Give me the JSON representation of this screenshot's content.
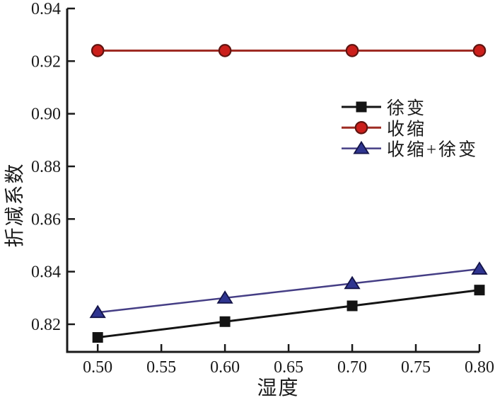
{
  "page": {
    "background_color": "#ffffff"
  },
  "chart_data": {
    "type": "line",
    "title": "",
    "xlabel": "湿度",
    "ylabel": "折减系数",
    "x": [
      0.5,
      0.6,
      0.7,
      0.8
    ],
    "series": [
      {
        "name": "徐变",
        "line_color": "#141414",
        "line_width": 3,
        "marker": "square",
        "marker_fill": "#141414",
        "marker_edge": "#141414",
        "values": [
          0.815,
          0.821,
          0.827,
          0.833
        ]
      },
      {
        "name": "收缩",
        "line_color": "#9e2b23",
        "line_width": 3,
        "marker": "circle",
        "marker_fill": "#cb1f1b",
        "marker_edge": "#601410",
        "values": [
          0.924,
          0.924,
          0.924,
          0.924
        ]
      },
      {
        "name": "收缩+徐变",
        "line_color": "#453e85",
        "line_width": 2.5,
        "marker": "triangle",
        "marker_fill": "#2f3590",
        "marker_edge": "#131347",
        "values": [
          0.8245,
          0.83,
          0.8355,
          0.841
        ]
      }
    ],
    "xlim": [
      0.476,
      0.8
    ],
    "ylim": [
      0.8095,
      0.94
    ],
    "xticks": [
      0.5,
      0.55,
      0.6,
      0.65,
      0.7,
      0.75,
      0.8
    ],
    "yticks": [
      0.82,
      0.84,
      0.86,
      0.88,
      0.9,
      0.92,
      0.94
    ],
    "tick_decimals": 2,
    "grid": false,
    "legend": {
      "position": "inside-upper-right",
      "entries": [
        "徐变",
        "收缩",
        "收缩+徐变"
      ]
    },
    "axis_color": "#1a1a1a",
    "text_color": "#1a1a1a"
  }
}
